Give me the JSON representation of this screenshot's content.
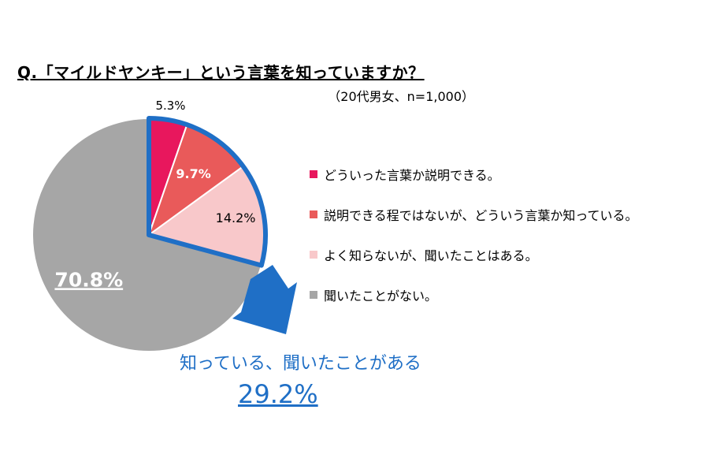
{
  "chart_data": {
    "type": "pie",
    "title": "Q.「マイルドヤンキー」という言葉を知っていますか？",
    "subtitle": "（20代男女、n=1,000）",
    "slices": [
      {
        "label": "どういった言葉か説明できる。",
        "value": 5.3,
        "display": "5.3%",
        "color": "#e8175d"
      },
      {
        "label": "説明できる程ではないが、どういう言葉か知っている。",
        "value": 9.7,
        "display": "9.7%",
        "color": "#e95a5a"
      },
      {
        "label": "よく知らないが、聞いたことはある。",
        "value": 14.2,
        "display": "14.2%",
        "color": "#f8c8ca"
      },
      {
        "label": "聞いたことがない。",
        "value": 70.8,
        "display": "70.8%",
        "color": "#a6a6a6"
      }
    ],
    "legend_position": "right",
    "highlight": {
      "text": "知っている、聞いたことがある",
      "value": "29.2%",
      "color": "#1f6fc6"
    }
  }
}
